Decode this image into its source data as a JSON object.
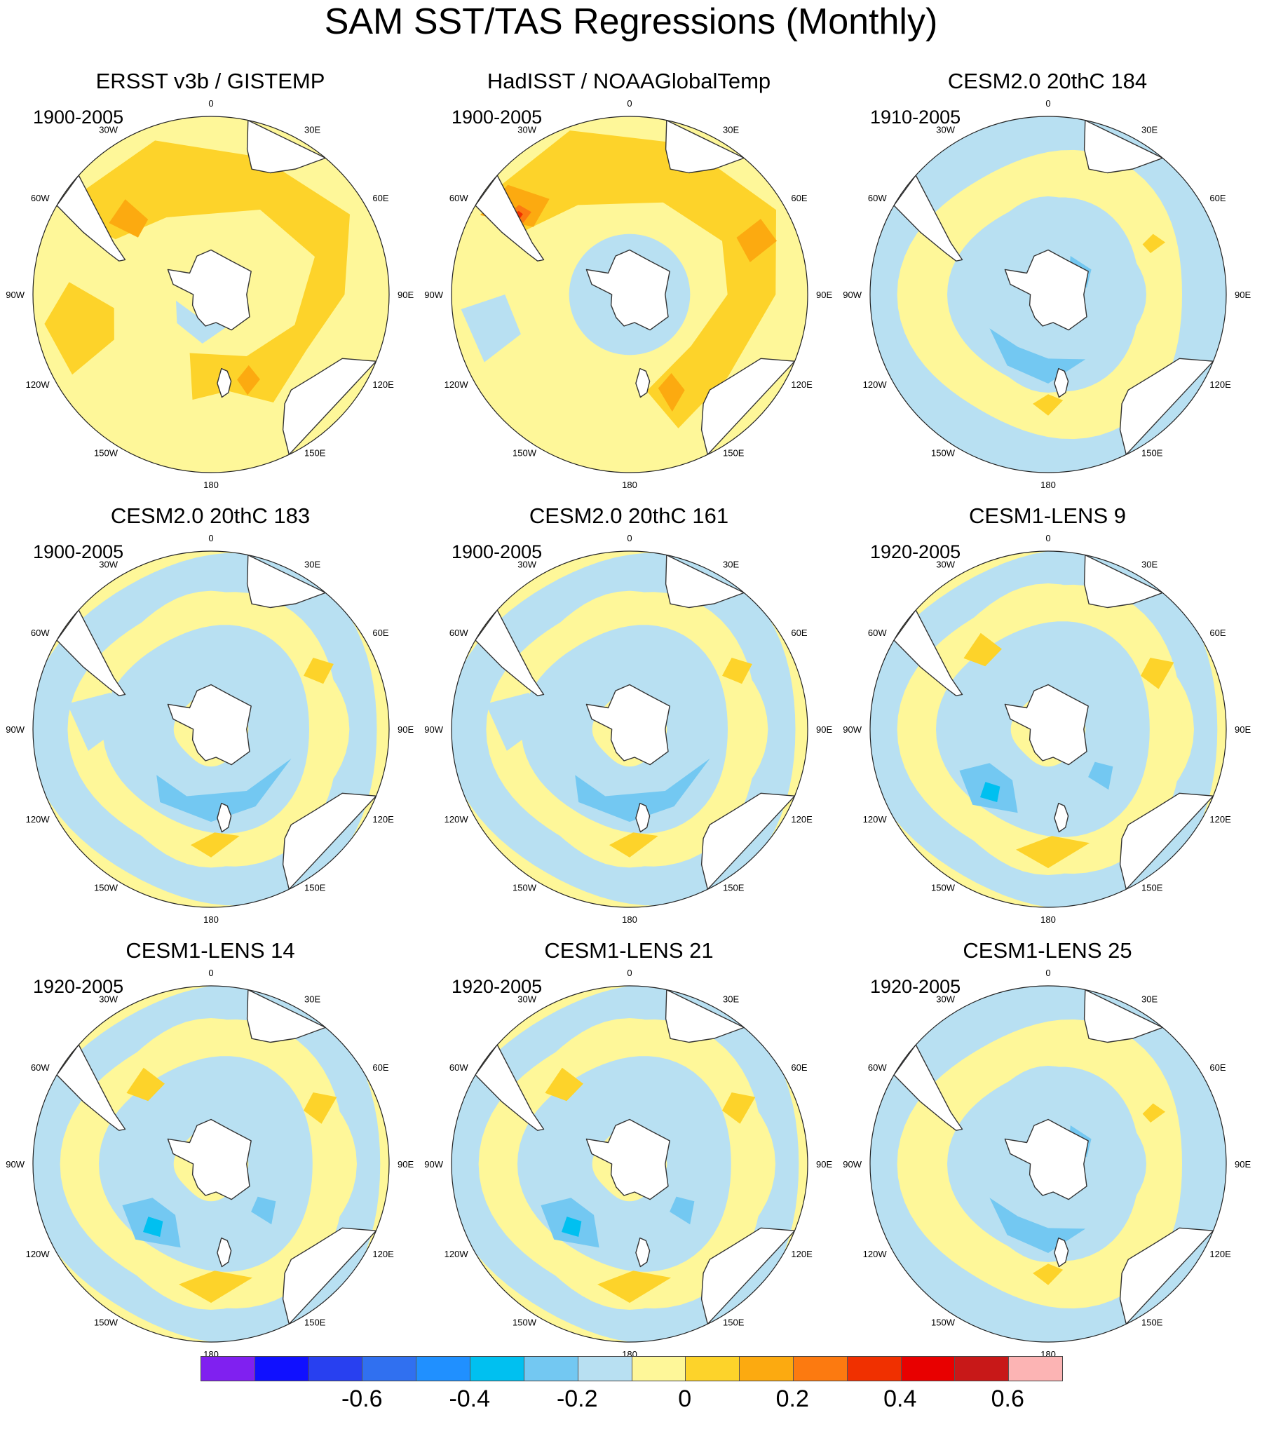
{
  "title": "SAM SST/TAS Regressions (Monthly)",
  "colors": {
    "ocean_blue_light": "#b8e0f2",
    "blue_mid": "#73c8f2",
    "cyan": "#00c0f0",
    "yellow_light": "#fef799",
    "yellow": "#fdd32a",
    "orange_light": "#fcaa10",
    "orange": "#fc7a10",
    "red": "#f03000",
    "land_white": "#ffffff",
    "coast": "#333333"
  },
  "longitude_labels": [
    "0",
    "30E",
    "60E",
    "90E",
    "120E",
    "150E",
    "180",
    "150W",
    "120W",
    "90W",
    "60W",
    "30W"
  ],
  "panels": [
    {
      "title": "ERSST v3b / GISTEMP",
      "years": "1900-2005",
      "style": "obs1"
    },
    {
      "title": "HadISST / NOAAGlobalTemp",
      "years": "1900-2005",
      "style": "obs2"
    },
    {
      "title": "CESM2.0 20thC 184",
      "years": "1910-2005",
      "style": "m1"
    },
    {
      "title": "CESM2.0 20thC 183",
      "years": "1900-2005",
      "style": "m2"
    },
    {
      "title": "CESM2.0 20thC 161",
      "years": "1900-2005",
      "style": "m2"
    },
    {
      "title": "CESM1-LENS 9",
      "years": "1920-2005",
      "style": "m3"
    },
    {
      "title": "CESM1-LENS 14",
      "years": "1920-2005",
      "style": "m3"
    },
    {
      "title": "CESM1-LENS 21",
      "years": "1920-2005",
      "style": "m3"
    },
    {
      "title": "CESM1-LENS 25",
      "years": "1920-2005",
      "style": "m1"
    }
  ],
  "colorbar": {
    "colors": [
      "#8020f0",
      "#1010ff",
      "#2840f0",
      "#3070f0",
      "#2090ff",
      "#00c0f0",
      "#73c8f2",
      "#b8e0f2",
      "#fef799",
      "#fdd32a",
      "#fcaa10",
      "#fc7a10",
      "#f03000",
      "#e80000",
      "#c81818",
      "#fcb4b4"
    ],
    "labels": [
      "-0.6",
      "-0.4",
      "-0.2",
      "0",
      "0.2",
      "0.4",
      "0.6"
    ]
  }
}
